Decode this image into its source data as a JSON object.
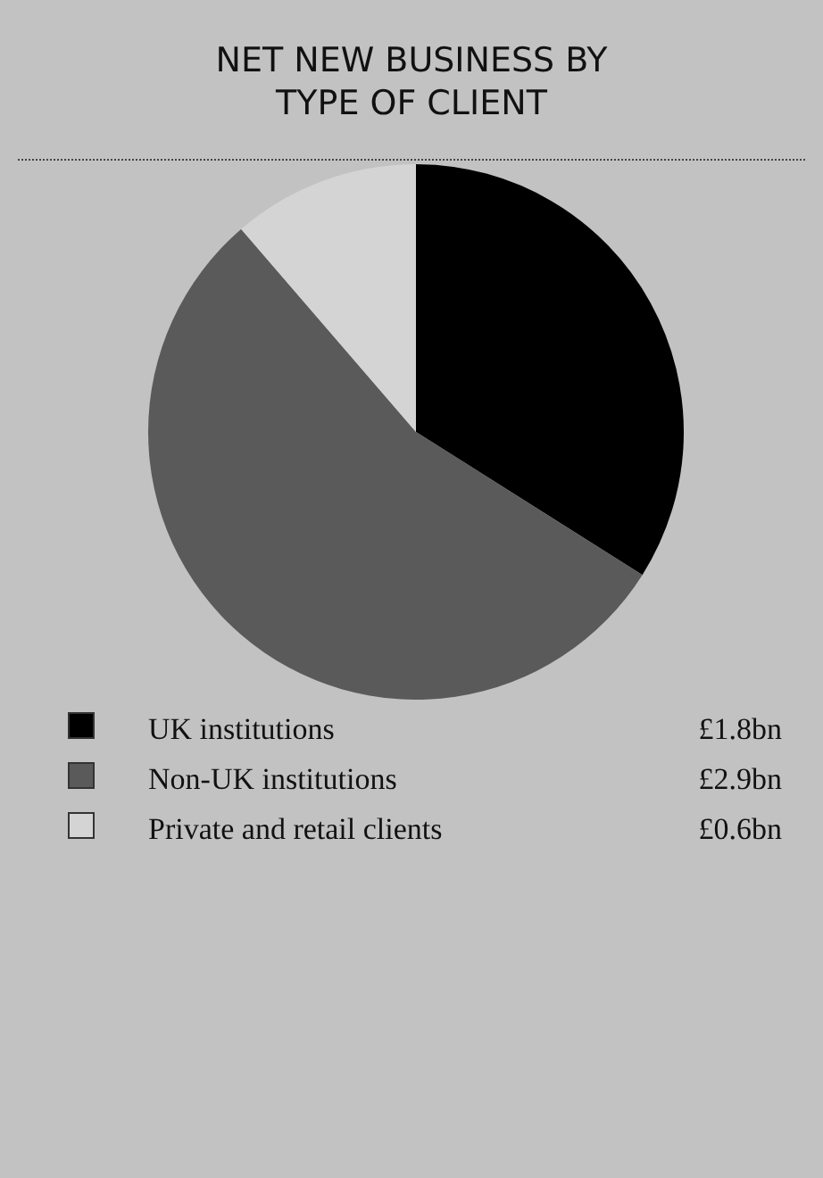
{
  "chart_data": {
    "type": "pie",
    "title": "NET NEW BUSINESS BY TYPE OF CLIENT",
    "categories": [
      "UK institutions",
      "Non-UK institutions",
      "Private and retail clients"
    ],
    "values": [
      1.8,
      2.9,
      0.6
    ],
    "colors": [
      "#000000",
      "#5a5a5a",
      "#d4d4d4"
    ],
    "value_labels": [
      "£1.8bn",
      "£2.9bn",
      "£0.6bn"
    ],
    "legend": "bottom"
  }
}
